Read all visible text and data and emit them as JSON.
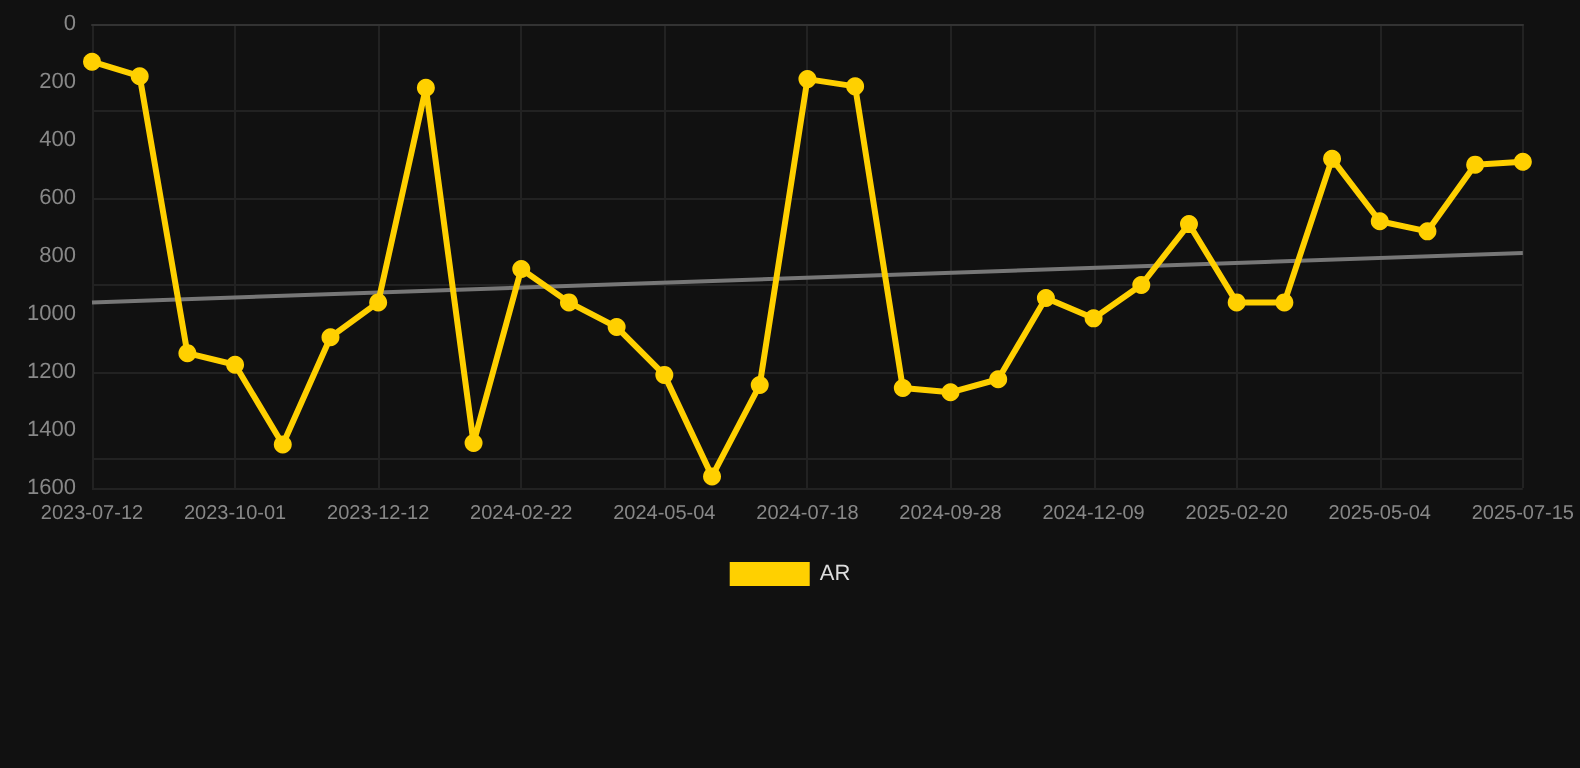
{
  "chart_data": {
    "type": "line",
    "categories": [
      "2023-07-12",
      null,
      null,
      "2023-10-01",
      null,
      null,
      "2023-12-12",
      null,
      null,
      "2024-02-22",
      null,
      null,
      "2024-05-04",
      null,
      null,
      "2024-07-18",
      null,
      null,
      "2024-09-28",
      null,
      null,
      "2024-12-09",
      null,
      null,
      "2025-02-20",
      null,
      null,
      "2025-05-04",
      null,
      null,
      "2025-07-15"
    ],
    "series": [
      {
        "name": "AR",
        "color": "#ffd000",
        "values": [
          130,
          180,
          1135,
          1175,
          1450,
          1080,
          960,
          220,
          1445,
          845,
          960,
          1045,
          1210,
          1560,
          1245,
          190,
          215,
          1255,
          1270,
          1225,
          945,
          1015,
          900,
          690,
          960,
          960,
          465,
          680,
          715,
          485,
          475
        ]
      },
      {
        "type": "line",
        "color": "#777777",
        "values": [
          960,
          null,
          null,
          null,
          null,
          null,
          null,
          null,
          null,
          null,
          null,
          null,
          null,
          null,
          null,
          null,
          null,
          null,
          null,
          null,
          null,
          null,
          null,
          null,
          null,
          null,
          null,
          null,
          null,
          null,
          790
        ],
        "marker": "none"
      }
    ],
    "ylim": [
      1600,
      0
    ],
    "yticks": [
      0,
      200,
      400,
      600,
      800,
      1000,
      1200,
      1400,
      1600
    ],
    "grid": true,
    "legend": "bottom",
    "marker": "circle",
    "line_style": "solid"
  }
}
